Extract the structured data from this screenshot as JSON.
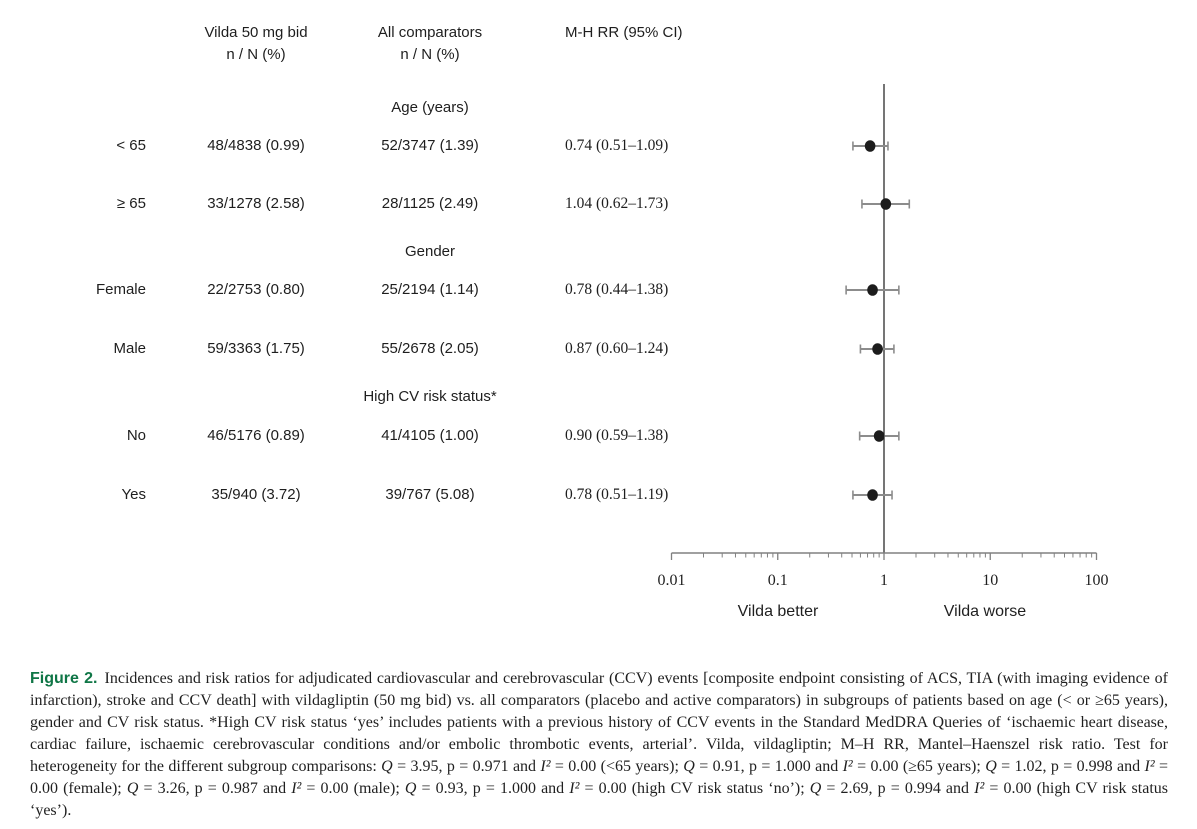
{
  "columns": {
    "vilda_line1": "Vilda 50 mg bid",
    "vilda_line2": "n / N (%)",
    "comparators_line1": "All comparators",
    "comparators_line2": "n / N (%)",
    "rr": "M-H RR (95% CI)"
  },
  "groups": [
    {
      "header": "Age (years)",
      "rows": [
        {
          "label": "< 65",
          "vilda": "48/4838 (0.99)",
          "comparators": "52/3747 (1.39)",
          "rr_text": "0.74 (0.51–1.09)"
        },
        {
          "label": "≥ 65",
          "vilda": "33/1278 (2.58)",
          "comparators": "28/1125 (2.49)",
          "rr_text": "1.04 (0.62–1.73)"
        }
      ]
    },
    {
      "header": "Gender",
      "rows": [
        {
          "label": "Female",
          "vilda": "22/2753 (0.80)",
          "comparators": "25/2194 (1.14)",
          "rr_text": "0.78 (0.44–1.38)"
        },
        {
          "label": "Male",
          "vilda": "59/3363 (1.75)",
          "comparators": "55/2678 (2.05)",
          "rr_text": "0.87 (0.60–1.24)"
        }
      ]
    },
    {
      "header": "High CV risk status*",
      "rows": [
        {
          "label": "No",
          "vilda": "46/5176 (0.89)",
          "comparators": "41/4105 (1.00)",
          "rr_text": "0.90 (0.59–1.38)"
        },
        {
          "label": "Yes",
          "vilda": "35/940 (3.72)",
          "comparators": "39/767 (5.08)",
          "rr_text": "0.78 (0.51–1.19)"
        }
      ]
    }
  ],
  "chart_data": {
    "type": "scatter",
    "subtype": "forest-plot",
    "xscale": "log",
    "xlim": [
      0.01,
      100
    ],
    "xticks": [
      0.01,
      0.1,
      1,
      10,
      100
    ],
    "xtick_labels": [
      "0.01",
      "0.1",
      "1",
      "10",
      "100"
    ],
    "ref_line": 1,
    "left_label": "Vilda better",
    "right_label": "Vilda worse",
    "points": [
      {
        "group": "Age (years)",
        "label": "< 65",
        "rr": 0.74,
        "ci_low": 0.51,
        "ci_high": 1.09
      },
      {
        "group": "Age (years)",
        "label": "≥ 65",
        "rr": 1.04,
        "ci_low": 0.62,
        "ci_high": 1.73
      },
      {
        "group": "Gender",
        "label": "Female",
        "rr": 0.78,
        "ci_low": 0.44,
        "ci_high": 1.38
      },
      {
        "group": "Gender",
        "label": "Male",
        "rr": 0.87,
        "ci_low": 0.6,
        "ci_high": 1.24
      },
      {
        "group": "High CV risk status*",
        "label": "No",
        "rr": 0.9,
        "ci_low": 0.59,
        "ci_high": 1.38
      },
      {
        "group": "High CV risk status*",
        "label": "Yes",
        "rr": 0.78,
        "ci_low": 0.51,
        "ci_high": 1.19
      }
    ]
  },
  "colors": {
    "figure_label_green": "#0f7646",
    "ci_line": "#8c8c8c",
    "marker": "#1c1c1c",
    "axis": "#808080",
    "ref_line": "#2b2b2b",
    "text": "#1f1f1f"
  },
  "caption": {
    "segments": [
      {
        "t": "Figure 2.",
        "s": "fig"
      },
      {
        "t": "Incidences and risk ratios for adjudicated cardiovascular and cerebrovascular (CCV) events [composite endpoint consisting of ACS, TIA (with imaging evidence of infarction), stroke and CCV death] with vildagliptin (50 mg bid) vs. all comparators (placebo and active comparators) in subgroups of patients based on age (< or ≥65 years), gender and CV risk status. *High CV risk status ‘yes’ includes patients with a previous history of CCV events in the Standard MedDRA Queries of ‘ischaemic heart disease, cardiac failure, ischaemic cerebrovascular conditions and/or embolic thrombotic events, arterial’. Vilda, vildagliptin; M–H RR, Mantel–Haenszel risk ratio. Test for heterogeneity for the different subgroup comparisons: ",
        "s": "n"
      },
      {
        "t": "Q",
        "s": "i"
      },
      {
        "t": " = 3.95, p = 0.971 and ",
        "s": "n"
      },
      {
        "t": "I²",
        "s": "i"
      },
      {
        "t": " = 0.00 (<65 years); ",
        "s": "n"
      },
      {
        "t": "Q",
        "s": "i"
      },
      {
        "t": " = 0.91, p = 1.000 and ",
        "s": "n"
      },
      {
        "t": "I²",
        "s": "i"
      },
      {
        "t": " = 0.00 (≥65 years); ",
        "s": "n"
      },
      {
        "t": "Q",
        "s": "i"
      },
      {
        "t": " = 1.02, p = 0.998 and ",
        "s": "n"
      },
      {
        "t": "I²",
        "s": "i"
      },
      {
        "t": " = 0.00 (female); ",
        "s": "n"
      },
      {
        "t": "Q",
        "s": "i"
      },
      {
        "t": " = 3.26, p = 0.987 and ",
        "s": "n"
      },
      {
        "t": "I²",
        "s": "i"
      },
      {
        "t": " = 0.00 (male); ",
        "s": "n"
      },
      {
        "t": "Q",
        "s": "i"
      },
      {
        "t": " = 0.93, p = 1.000 and ",
        "s": "n"
      },
      {
        "t": "I²",
        "s": "i"
      },
      {
        "t": " = 0.00 (high CV risk status ‘no’); ",
        "s": "n"
      },
      {
        "t": "Q",
        "s": "i"
      },
      {
        "t": " = 2.69, p = 0.994 and ",
        "s": "n"
      },
      {
        "t": "I²",
        "s": "i"
      },
      {
        "t": " = 0.00 (high CV risk status ‘yes’).",
        "s": "n"
      }
    ]
  }
}
